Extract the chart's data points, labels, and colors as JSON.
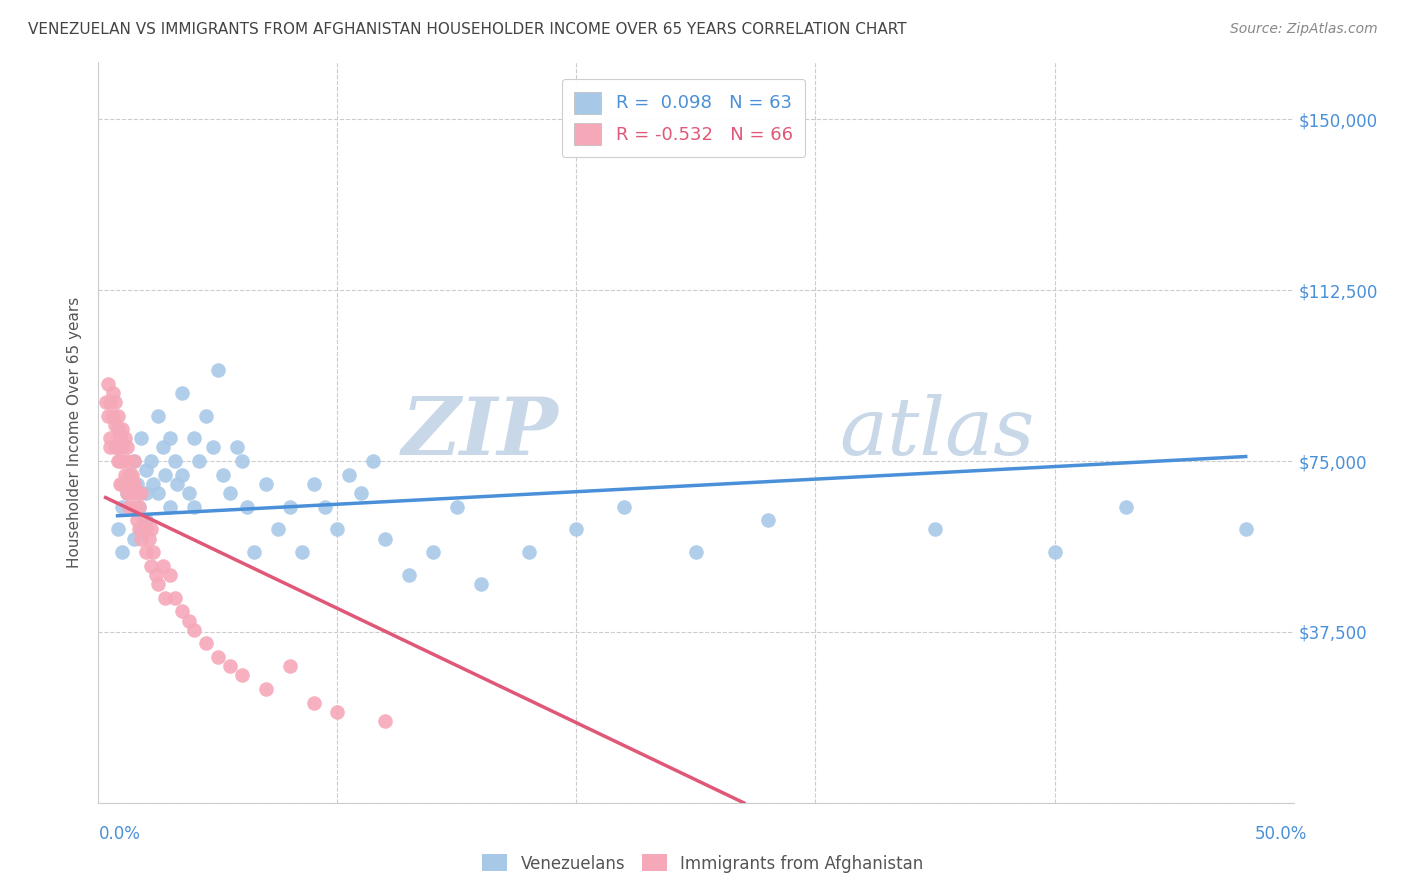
{
  "title": "VENEZUELAN VS IMMIGRANTS FROM AFGHANISTAN HOUSEHOLDER INCOME OVER 65 YEARS CORRELATION CHART",
  "source": "Source: ZipAtlas.com",
  "ylabel": "Householder Income Over 65 years",
  "yticks": [
    0,
    37500,
    75000,
    112500,
    150000
  ],
  "ytick_labels": [
    "",
    "$37,500",
    "$75,000",
    "$112,500",
    "$150,000"
  ],
  "xlim": [
    0.0,
    0.5
  ],
  "ylim": [
    0,
    162500
  ],
  "watermark_part1": "ZIP",
  "watermark_part2": "atlas",
  "legend_blue_R": "0.098",
  "legend_blue_N": "63",
  "legend_pink_R": "-0.532",
  "legend_pink_N": "66",
  "blue_color": "#a8c8e8",
  "pink_color": "#f5a8b8",
  "blue_line_color": "#4a90d9",
  "pink_line_color": "#e05878",
  "title_color": "#444444",
  "axis_label_color": "#4a90d9",
  "watermark_color_zip": "#c8d8e8",
  "watermark_color_atlas": "#c8d8e8",
  "venezuelans_x": [
    0.008,
    0.01,
    0.01,
    0.012,
    0.013,
    0.015,
    0.015,
    0.016,
    0.017,
    0.018,
    0.018,
    0.02,
    0.02,
    0.02,
    0.022,
    0.023,
    0.025,
    0.025,
    0.027,
    0.028,
    0.03,
    0.03,
    0.032,
    0.033,
    0.035,
    0.035,
    0.038,
    0.04,
    0.04,
    0.042,
    0.045,
    0.048,
    0.05,
    0.052,
    0.055,
    0.058,
    0.06,
    0.062,
    0.065,
    0.07,
    0.075,
    0.08,
    0.085,
    0.09,
    0.095,
    0.1,
    0.105,
    0.11,
    0.115,
    0.12,
    0.13,
    0.14,
    0.15,
    0.16,
    0.18,
    0.2,
    0.22,
    0.25,
    0.28,
    0.35,
    0.4,
    0.43,
    0.48
  ],
  "venezuelans_y": [
    60000,
    55000,
    65000,
    68000,
    72000,
    58000,
    75000,
    70000,
    65000,
    80000,
    60000,
    68000,
    73000,
    62000,
    75000,
    70000,
    85000,
    68000,
    78000,
    72000,
    80000,
    65000,
    75000,
    70000,
    90000,
    72000,
    68000,
    80000,
    65000,
    75000,
    85000,
    78000,
    95000,
    72000,
    68000,
    78000,
    75000,
    65000,
    55000,
    70000,
    60000,
    65000,
    55000,
    70000,
    65000,
    60000,
    72000,
    68000,
    75000,
    58000,
    50000,
    55000,
    65000,
    48000,
    55000,
    60000,
    65000,
    55000,
    62000,
    60000,
    55000,
    65000,
    60000
  ],
  "afghanistan_x": [
    0.003,
    0.004,
    0.004,
    0.005,
    0.005,
    0.005,
    0.006,
    0.006,
    0.007,
    0.007,
    0.007,
    0.008,
    0.008,
    0.008,
    0.008,
    0.009,
    0.009,
    0.009,
    0.01,
    0.01,
    0.01,
    0.01,
    0.011,
    0.011,
    0.012,
    0.012,
    0.012,
    0.013,
    0.013,
    0.013,
    0.014,
    0.014,
    0.015,
    0.015,
    0.015,
    0.016,
    0.016,
    0.017,
    0.017,
    0.018,
    0.018,
    0.019,
    0.02,
    0.02,
    0.021,
    0.022,
    0.022,
    0.023,
    0.024,
    0.025,
    0.027,
    0.028,
    0.03,
    0.032,
    0.035,
    0.038,
    0.04,
    0.045,
    0.05,
    0.055,
    0.06,
    0.07,
    0.08,
    0.09,
    0.1,
    0.12
  ],
  "afghanistan_y": [
    88000,
    85000,
    92000,
    80000,
    88000,
    78000,
    85000,
    90000,
    78000,
    83000,
    88000,
    75000,
    82000,
    78000,
    85000,
    80000,
    75000,
    70000,
    78000,
    82000,
    70000,
    75000,
    80000,
    72000,
    78000,
    68000,
    75000,
    72000,
    65000,
    70000,
    68000,
    72000,
    65000,
    70000,
    75000,
    68000,
    62000,
    65000,
    60000,
    68000,
    58000,
    62000,
    60000,
    55000,
    58000,
    52000,
    60000,
    55000,
    50000,
    48000,
    52000,
    45000,
    50000,
    45000,
    42000,
    40000,
    38000,
    35000,
    32000,
    30000,
    28000,
    25000,
    30000,
    22000,
    20000,
    18000
  ],
  "afg_line_x": [
    0.003,
    0.27
  ],
  "afg_line_y": [
    67000,
    0
  ],
  "ven_line_x": [
    0.008,
    0.48
  ],
  "ven_line_y": [
    63000,
    76000
  ]
}
